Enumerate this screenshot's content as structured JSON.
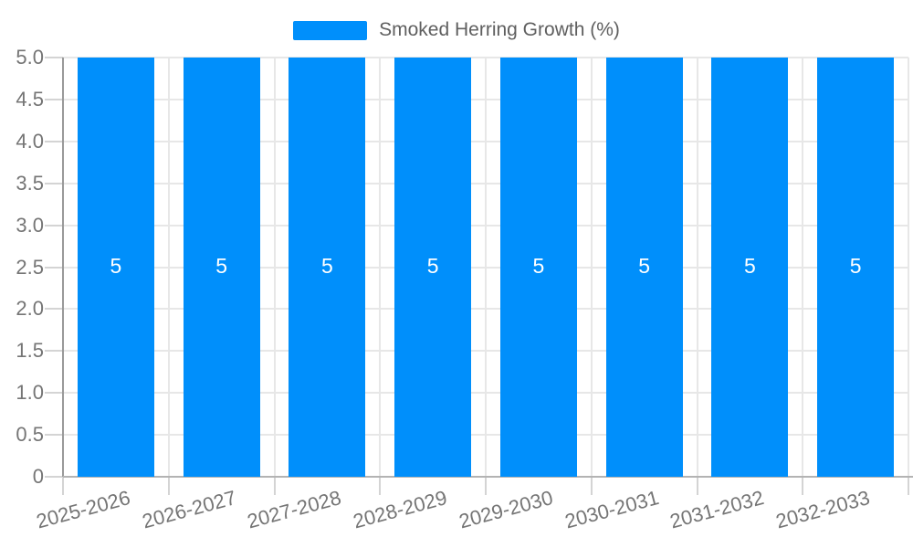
{
  "chart_data": {
    "type": "bar",
    "title": "",
    "legend_label": "Smoked Herring Growth (%)",
    "legend_position": "top",
    "categories": [
      "2025-2026",
      "2026-2027",
      "2027-2028",
      "2028-2029",
      "2029-2030",
      "2030-2031",
      "2031-2032",
      "2032-2033"
    ],
    "series": [
      {
        "name": "Smoked Herring Growth (%)",
        "values": [
          5,
          5,
          5,
          5,
          5,
          5,
          5,
          5
        ]
      }
    ],
    "value_labels": [
      "5",
      "5",
      "5",
      "5",
      "5",
      "5",
      "5",
      "5"
    ],
    "xlabel": "",
    "ylabel": "",
    "ylim": [
      0,
      5
    ],
    "ytick_labels": [
      "0",
      "0.5",
      "1.0",
      "1.5",
      "2.0",
      "2.5",
      "3.0",
      "3.5",
      "4.0",
      "4.5",
      "5.0"
    ],
    "grid": true,
    "colors": {
      "bar": "#008FFB",
      "grid": "#e7e7e7",
      "tick": "#d4d4d4",
      "y_axis_line": "#999999",
      "x_axis_line": "#b3b3b3",
      "axis_label": "#757575",
      "legend_text": "#5f5f5f",
      "value_label": "#ffffff"
    }
  }
}
